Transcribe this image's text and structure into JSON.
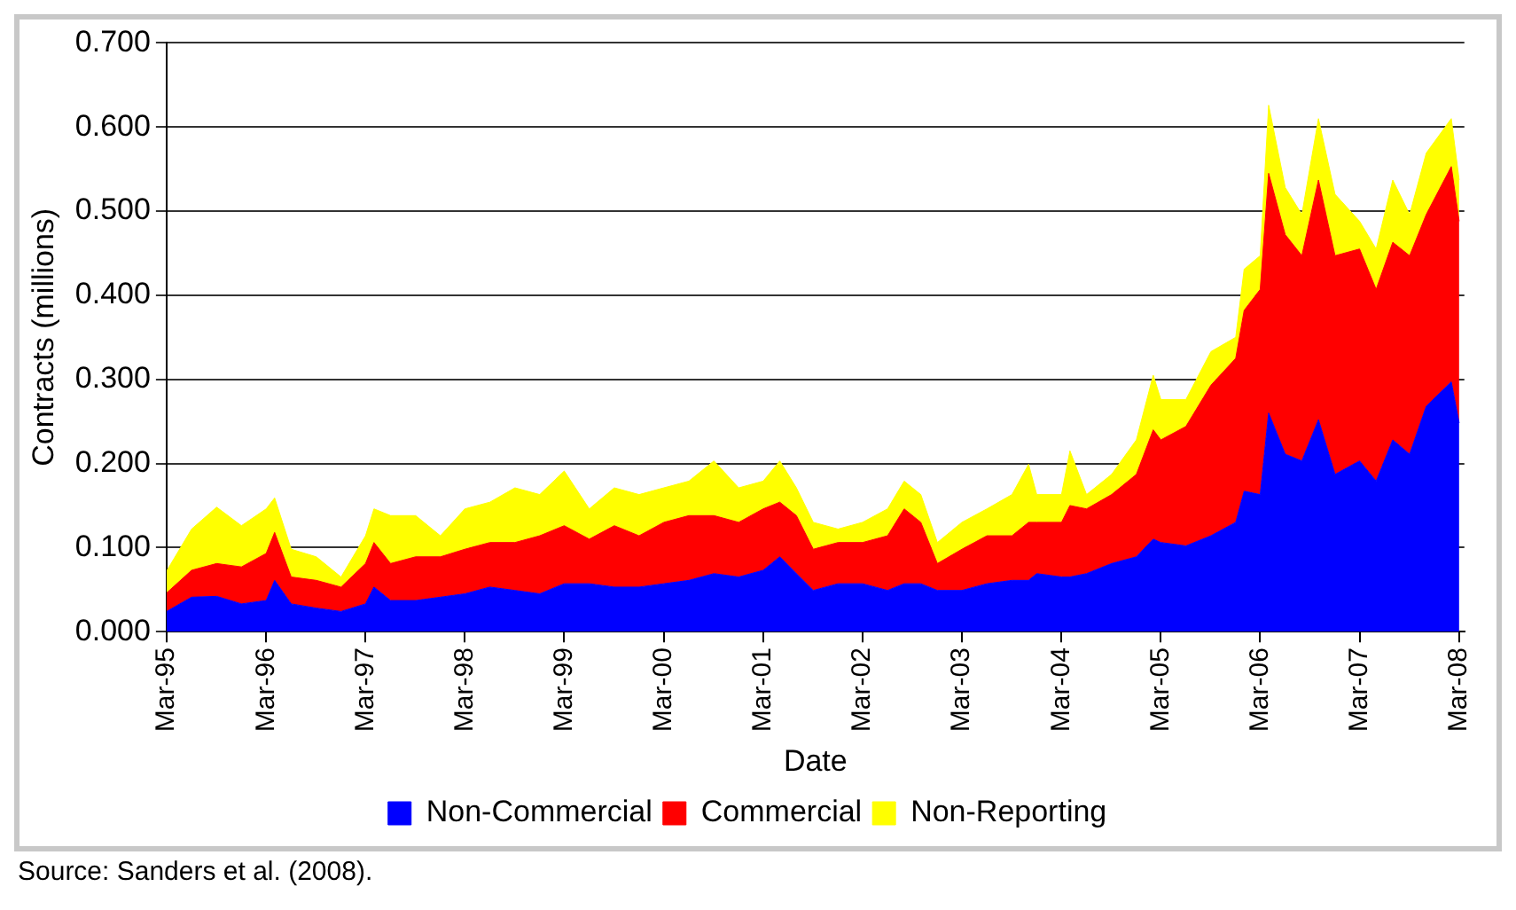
{
  "chart_data": {
    "type": "area",
    "stacked": true,
    "xlabel": "Date",
    "ylabel": "Contracts (millions)",
    "legend": "bottom",
    "grid": "y",
    "marker": "none",
    "x": [
      "1995-03",
      "1995-06",
      "1995-09",
      "1995-12",
      "1996-03",
      "1996-04",
      "1996-06",
      "1996-09",
      "1996-12",
      "1997-03",
      "1997-04",
      "1997-06",
      "1997-09",
      "1997-12",
      "1998-03",
      "1998-06",
      "1998-09",
      "1998-12",
      "1999-03",
      "1999-06",
      "1999-09",
      "1999-12",
      "2000-03",
      "2000-06",
      "2000-09",
      "2000-12",
      "2001-03",
      "2001-05",
      "2001-07",
      "2001-09",
      "2001-12",
      "2002-03",
      "2002-06",
      "2002-08",
      "2002-10",
      "2002-12",
      "2003-03",
      "2003-06",
      "2003-09",
      "2003-11",
      "2003-12",
      "2004-03",
      "2004-04",
      "2004-06",
      "2004-09",
      "2004-12",
      "2005-02",
      "2005-03",
      "2005-06",
      "2005-09",
      "2005-12",
      "2006-01",
      "2006-03",
      "2006-04",
      "2006-06",
      "2006-08",
      "2006-10",
      "2006-12",
      "2007-03",
      "2007-05",
      "2007-07",
      "2007-09",
      "2007-11",
      "2008-02",
      "2008-03"
    ],
    "series": [
      {
        "name": "Non-Commercial",
        "color": "#0000ff",
        "values": [
          0.024,
          0.041,
          0.042,
          0.033,
          0.037,
          0.061,
          0.033,
          0.028,
          0.024,
          0.033,
          0.053,
          0.037,
          0.037,
          0.041,
          0.045,
          0.053,
          0.049,
          0.045,
          0.057,
          0.057,
          0.053,
          0.053,
          0.057,
          0.061,
          0.069,
          0.065,
          0.073,
          0.089,
          0.069,
          0.049,
          0.057,
          0.057,
          0.049,
          0.057,
          0.057,
          0.049,
          0.049,
          0.057,
          0.061,
          0.061,
          0.069,
          0.065,
          0.065,
          0.069,
          0.081,
          0.089,
          0.11,
          0.106,
          0.102,
          0.114,
          0.13,
          0.167,
          0.163,
          0.26,
          0.211,
          0.203,
          0.252,
          0.187,
          0.203,
          0.179,
          0.228,
          0.211,
          0.268,
          0.297,
          0.248
        ]
      },
      {
        "name": "Commercial",
        "color": "#ff0000",
        "values": [
          0.022,
          0.032,
          0.039,
          0.044,
          0.056,
          0.057,
          0.032,
          0.033,
          0.029,
          0.048,
          0.053,
          0.044,
          0.052,
          0.048,
          0.053,
          0.053,
          0.057,
          0.069,
          0.069,
          0.053,
          0.073,
          0.061,
          0.073,
          0.077,
          0.069,
          0.065,
          0.073,
          0.065,
          0.069,
          0.049,
          0.049,
          0.049,
          0.065,
          0.089,
          0.073,
          0.032,
          0.049,
          0.057,
          0.053,
          0.069,
          0.061,
          0.065,
          0.085,
          0.077,
          0.082,
          0.098,
          0.13,
          0.122,
          0.142,
          0.179,
          0.195,
          0.215,
          0.244,
          0.285,
          0.261,
          0.244,
          0.285,
          0.26,
          0.252,
          0.228,
          0.235,
          0.236,
          0.228,
          0.256,
          0.24
        ]
      },
      {
        "name": "Non-Reporting",
        "color": "#ffff00",
        "values": [
          0.026,
          0.049,
          0.067,
          0.049,
          0.053,
          0.041,
          0.033,
          0.028,
          0.012,
          0.033,
          0.04,
          0.057,
          0.049,
          0.025,
          0.048,
          0.048,
          0.065,
          0.049,
          0.065,
          0.036,
          0.045,
          0.049,
          0.041,
          0.041,
          0.065,
          0.041,
          0.033,
          0.049,
          0.033,
          0.032,
          0.016,
          0.024,
          0.032,
          0.033,
          0.033,
          0.025,
          0.032,
          0.032,
          0.049,
          0.069,
          0.033,
          0.033,
          0.065,
          0.017,
          0.024,
          0.041,
          0.065,
          0.048,
          0.032,
          0.04,
          0.025,
          0.049,
          0.04,
          0.081,
          0.056,
          0.049,
          0.073,
          0.073,
          0.033,
          0.048,
          0.074,
          0.049,
          0.073,
          0.057,
          0.049
        ]
      }
    ],
    "xlim": [
      "1995-03",
      "2008-03-20"
    ],
    "xticks": [
      {
        "value": "1995-03",
        "label": "Mar-95"
      },
      {
        "value": "1996-03",
        "label": "Mar-96"
      },
      {
        "value": "1997-03",
        "label": "Mar-97"
      },
      {
        "value": "1998-03",
        "label": "Mar-98"
      },
      {
        "value": "1999-03",
        "label": "Mar-99"
      },
      {
        "value": "2000-03",
        "label": "Mar-00"
      },
      {
        "value": "2001-03",
        "label": "Mar-01"
      },
      {
        "value": "2002-03",
        "label": "Mar-02"
      },
      {
        "value": "2003-03",
        "label": "Mar-03"
      },
      {
        "value": "2004-03",
        "label": "Mar-04"
      },
      {
        "value": "2005-03",
        "label": "Mar-05"
      },
      {
        "value": "2006-03",
        "label": "Mar-06"
      },
      {
        "value": "2007-03",
        "label": "Mar-07"
      },
      {
        "value": "2008-03",
        "label": "Mar-08"
      }
    ],
    "ylim": [
      0,
      0.7
    ],
    "yticks": [
      {
        "value": 0,
        "label": "0.000"
      },
      {
        "value": 0.1,
        "label": "0.100"
      },
      {
        "value": 0.2,
        "label": "0.200"
      },
      {
        "value": 0.3,
        "label": "0.300"
      },
      {
        "value": 0.4,
        "label": "0.400"
      },
      {
        "value": 0.5,
        "label": "0.500"
      },
      {
        "value": 0.6,
        "label": "0.600"
      },
      {
        "value": 0.7,
        "label": "0.700"
      }
    ],
    "annotations": [
      "Source: Sanders et al. (2008)."
    ]
  }
}
